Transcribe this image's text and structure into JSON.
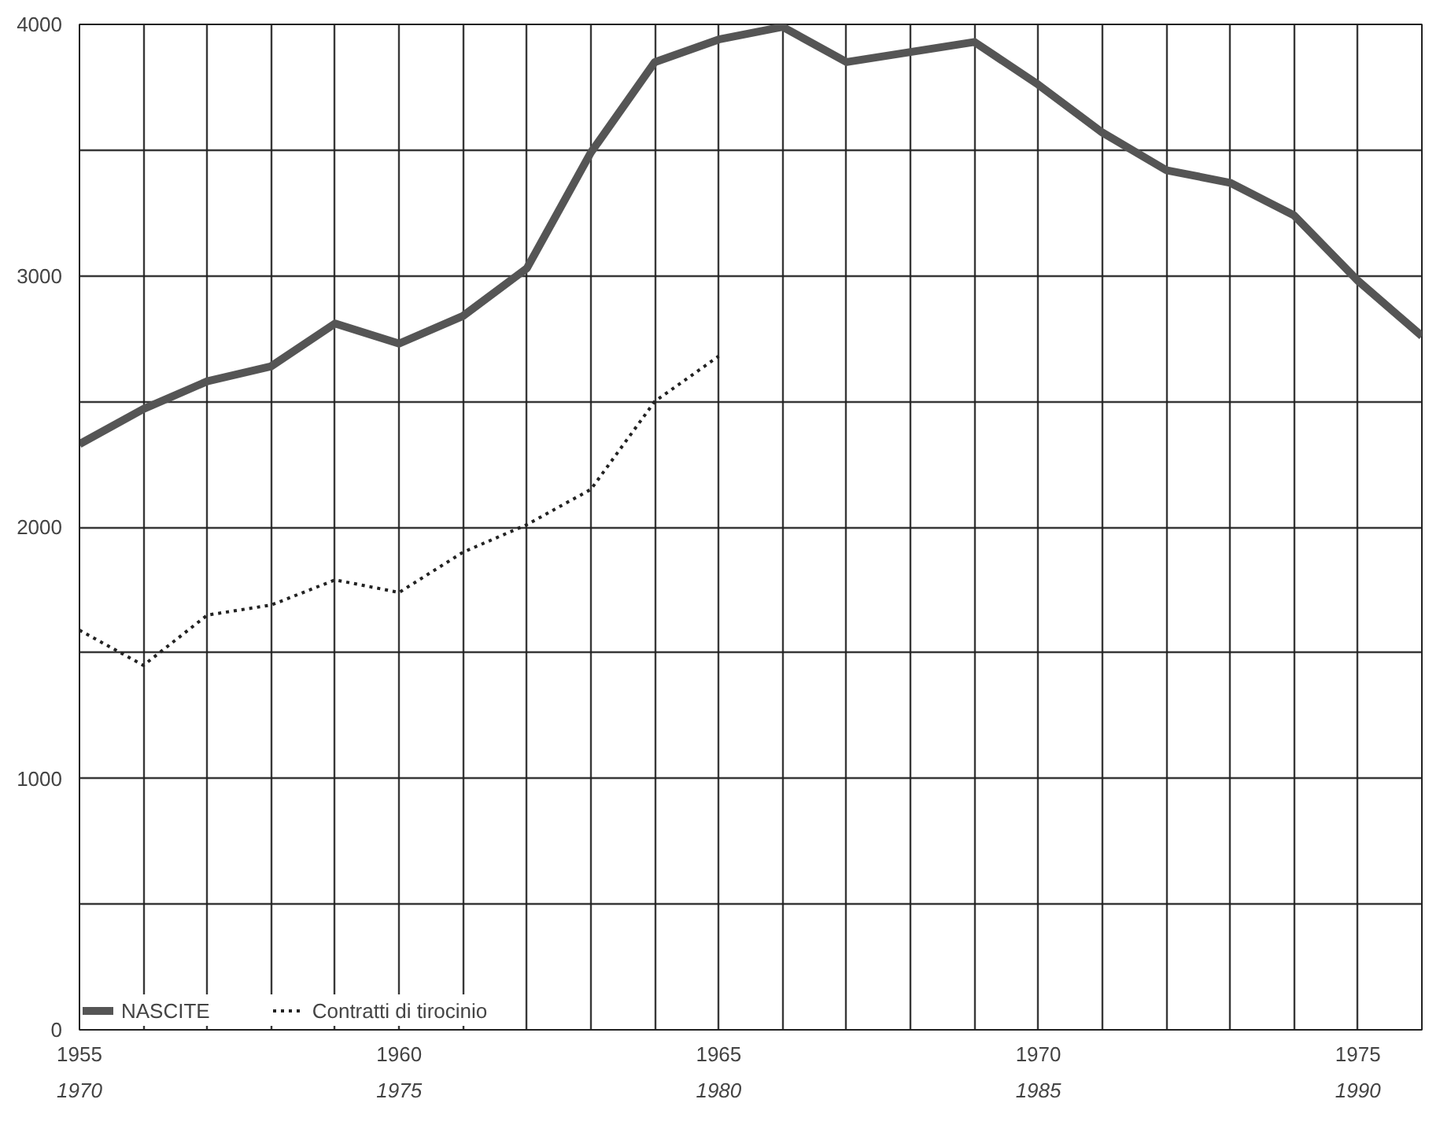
{
  "chart_data": {
    "type": "line",
    "x": [
      1955,
      1956,
      1957,
      1958,
      1959,
      1960,
      1961,
      1962,
      1963,
      1964,
      1965,
      1966,
      1967,
      1968,
      1969,
      1970,
      1971,
      1972,
      1973,
      1974,
      1975,
      1976
    ],
    "series": [
      {
        "name": "NASCITE",
        "color": "#555555",
        "line_style": "solid",
        "values": [
          2330,
          2470,
          2580,
          2640,
          2810,
          2730,
          2840,
          3030,
          3490,
          3850,
          3940,
          3990,
          3850,
          3890,
          3930,
          3760,
          3570,
          3420,
          3370,
          3240,
          2980,
          2760
        ]
      },
      {
        "name": "Contratti di tirocinio",
        "color": "#222222",
        "line_style": "dotted",
        "values": [
          1590,
          1450,
          1650,
          1690,
          1790,
          1740,
          1900,
          2010,
          2150,
          2500,
          2680,
          null,
          null,
          null,
          null,
          null,
          null,
          null,
          null,
          null,
          null,
          null
        ]
      }
    ],
    "xlim": [
      1955,
      1976
    ],
    "xticks": [
      1955,
      {
        "value": 1956,
        "label": null
      },
      {
        "value": 1957,
        "label": null
      },
      {
        "value": 1958,
        "label": null
      },
      {
        "value": 1959,
        "label": null
      },
      1960,
      {
        "value": 1961,
        "label": null
      },
      {
        "value": 1962,
        "label": null
      },
      {
        "value": 1963,
        "label": null
      },
      {
        "value": 1964,
        "label": null
      },
      1965,
      {
        "value": 1966,
        "label": null
      },
      {
        "value": 1967,
        "label": null
      },
      {
        "value": 1968,
        "label": null
      },
      {
        "value": 1969,
        "label": null
      },
      1970,
      {
        "value": 1971,
        "label": null
      },
      {
        "value": 1972,
        "label": null
      },
      {
        "value": 1973,
        "label": null
      },
      {
        "value": 1974,
        "label": null
      },
      1975,
      {
        "value": 1976,
        "label": null
      }
    ],
    "x2lim": [
      1970,
      1991
    ],
    "x2ticks": [
      1970,
      1975,
      1980,
      1985,
      1990
    ],
    "ylim": [
      0,
      4000
    ],
    "yticks": [
      0,
      {
        "value": 500,
        "label": null
      },
      1000,
      {
        "value": 1500,
        "label": null
      },
      2000,
      {
        "value": 2500,
        "label": null
      },
      3000,
      {
        "value": 3500,
        "label": null
      },
      4000
    ],
    "grid": true,
    "legend": "bottom left",
    "marker": "none"
  }
}
